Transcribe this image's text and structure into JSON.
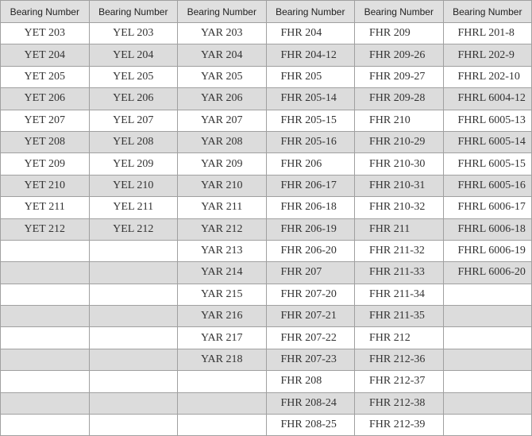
{
  "table": {
    "headers": [
      "Bearing Number",
      "Bearing Number",
      "Bearing Number",
      "Bearing Number",
      "Bearing Number",
      "Bearing Number"
    ],
    "columns": [
      [
        "YET 203",
        "YET 204",
        "YET 205",
        "YET 206",
        "YET 207",
        "YET 208",
        "YET 209",
        "YET 210",
        "YET 211",
        "YET 212"
      ],
      [
        "YEL 203",
        "YEL 204",
        "YEL 205",
        "YEL 206",
        "YEL 207",
        "YEL 208",
        "YEL 209",
        "YEL 210",
        "YEL 211",
        "YEL 212"
      ],
      [
        "YAR 203",
        "YAR 204",
        "YAR 205",
        "YAR 206",
        "YAR 207",
        "YAR 208",
        "YAR 209",
        "YAR 210",
        "YAR 211",
        "YAR 212",
        "YAR 213",
        "YAR 214",
        "YAR 215",
        "YAR 216",
        "YAR 217",
        "YAR 218"
      ],
      [
        "FHR 204",
        "FHR 204-12",
        "FHR 205",
        "FHR 205-14",
        "FHR 205-15",
        "FHR 205-16",
        "FHR 206",
        "FHR 206-17",
        "FHR 206-18",
        "FHR 206-19",
        "FHR 206-20",
        "FHR 207",
        "FHR 207-20",
        "FHR 207-21",
        "FHR 207-22",
        "FHR 207-23",
        "FHR 208",
        "FHR 208-24",
        "FHR 208-25"
      ],
      [
        "FHR 209",
        "FHR 209-26",
        "FHR 209-27",
        "FHR 209-28",
        "FHR 210",
        "FHR 210-29",
        "FHR 210-30",
        "FHR 210-31",
        "FHR 210-32",
        "FHR 211",
        "FHR 211-32",
        "FHR 211-33",
        "FHR 211-34",
        "FHR 211-35",
        "FHR 212",
        "FHR 212-36",
        "FHR 212-37",
        "FHR 212-38",
        "FHR 212-39"
      ],
      [
        "FHRL 201-8",
        "FHRL 202-9",
        "FHRL 202-10",
        "FHRL 6004-12",
        "FHRL 6005-13",
        "FHRL 6005-14",
        "FHRL 6005-15",
        "FHRL 6005-16",
        "FHRL 6006-17",
        "FHRL 6006-18",
        "FHRL 6006-19",
        "FHRL 6006-20"
      ]
    ],
    "row_count": 19,
    "colors": {
      "header_bg": "#e0e0e0",
      "alt_row_bg": "#dcdcdc",
      "border": "#a0a0a0"
    }
  }
}
